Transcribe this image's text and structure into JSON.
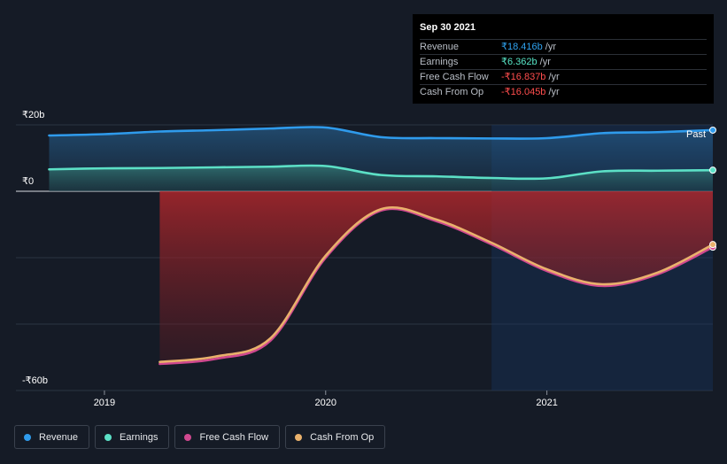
{
  "tooltip": {
    "date": "Sep 30 2021",
    "rows": [
      {
        "label": "Revenue",
        "value": "₹18.416b",
        "unit": "/yr",
        "color": "#2fa3f0"
      },
      {
        "label": "Earnings",
        "value": "₹6.362b",
        "unit": "/yr",
        "color": "#58e6c7"
      },
      {
        "label": "Free Cash Flow",
        "value": "-₹16.837b",
        "unit": "/yr",
        "color": "#ff4d4d"
      },
      {
        "label": "Cash From Op",
        "value": "-₹16.045b",
        "unit": "/yr",
        "color": "#ff4d4d"
      }
    ]
  },
  "past_label": "Past",
  "legend": [
    {
      "label": "Revenue",
      "color": "#2f9bec"
    },
    {
      "label": "Earnings",
      "color": "#5ce0c6"
    },
    {
      "label": "Free Cash Flow",
      "color": "#d0488f"
    },
    {
      "label": "Cash From Op",
      "color": "#e9b16c"
    }
  ],
  "chart_data": {
    "type": "line",
    "y_ticks": [
      {
        "value": 20,
        "label": "₹20b"
      },
      {
        "value": 0,
        "label": "₹0"
      },
      {
        "value": -60,
        "label": "-₹60b"
      }
    ],
    "ylim": [
      -60,
      20
    ],
    "x_ticks": [
      {
        "value": 2019.0,
        "label": "2019"
      },
      {
        "value": 2020.0,
        "label": "2020"
      },
      {
        "value": 2021.0,
        "label": "2021"
      }
    ],
    "xlim": [
      2018.6,
      2021.75
    ],
    "past_start": 2020.75,
    "series": [
      {
        "name": "Revenue",
        "color": "#2f9bec",
        "points": [
          [
            2018.75,
            16.8
          ],
          [
            2019.0,
            17.2
          ],
          [
            2019.25,
            18.0
          ],
          [
            2019.5,
            18.4
          ],
          [
            2019.75,
            18.9
          ],
          [
            2020.0,
            19.2
          ],
          [
            2020.25,
            16.3
          ],
          [
            2020.5,
            16.0
          ],
          [
            2020.75,
            15.9
          ],
          [
            2021.0,
            16.0
          ],
          [
            2021.25,
            17.5
          ],
          [
            2021.5,
            17.8
          ],
          [
            2021.75,
            18.416
          ]
        ]
      },
      {
        "name": "Earnings",
        "color": "#5ce0c6",
        "points": [
          [
            2018.75,
            6.6
          ],
          [
            2019.0,
            6.9
          ],
          [
            2019.25,
            7.0
          ],
          [
            2019.5,
            7.2
          ],
          [
            2019.75,
            7.4
          ],
          [
            2020.0,
            7.6
          ],
          [
            2020.25,
            4.9
          ],
          [
            2020.5,
            4.5
          ],
          [
            2020.75,
            4.0
          ],
          [
            2021.0,
            3.9
          ],
          [
            2021.25,
            6.0
          ],
          [
            2021.5,
            6.2
          ],
          [
            2021.75,
            6.362
          ]
        ]
      },
      {
        "name": "Free Cash Flow",
        "color": "#d0488f",
        "points": [
          [
            2019.25,
            -52.0
          ],
          [
            2019.5,
            -50.5
          ],
          [
            2019.75,
            -45.0
          ],
          [
            2020.0,
            -20.0
          ],
          [
            2020.25,
            -5.8
          ],
          [
            2020.5,
            -9.0
          ],
          [
            2020.75,
            -16.0
          ],
          [
            2021.0,
            -24.0
          ],
          [
            2021.25,
            -28.5
          ],
          [
            2021.5,
            -25.0
          ],
          [
            2021.75,
            -16.837
          ]
        ]
      },
      {
        "name": "Cash From Op",
        "color": "#e9b16c",
        "points": [
          [
            2019.25,
            -51.4
          ],
          [
            2019.5,
            -49.8
          ],
          [
            2019.75,
            -44.3
          ],
          [
            2020.0,
            -19.4
          ],
          [
            2020.25,
            -5.4
          ],
          [
            2020.5,
            -8.5
          ],
          [
            2020.75,
            -15.5
          ],
          [
            2021.0,
            -23.5
          ],
          [
            2021.25,
            -28.0
          ],
          [
            2021.5,
            -24.5
          ],
          [
            2021.75,
            -16.045
          ]
        ]
      }
    ]
  }
}
